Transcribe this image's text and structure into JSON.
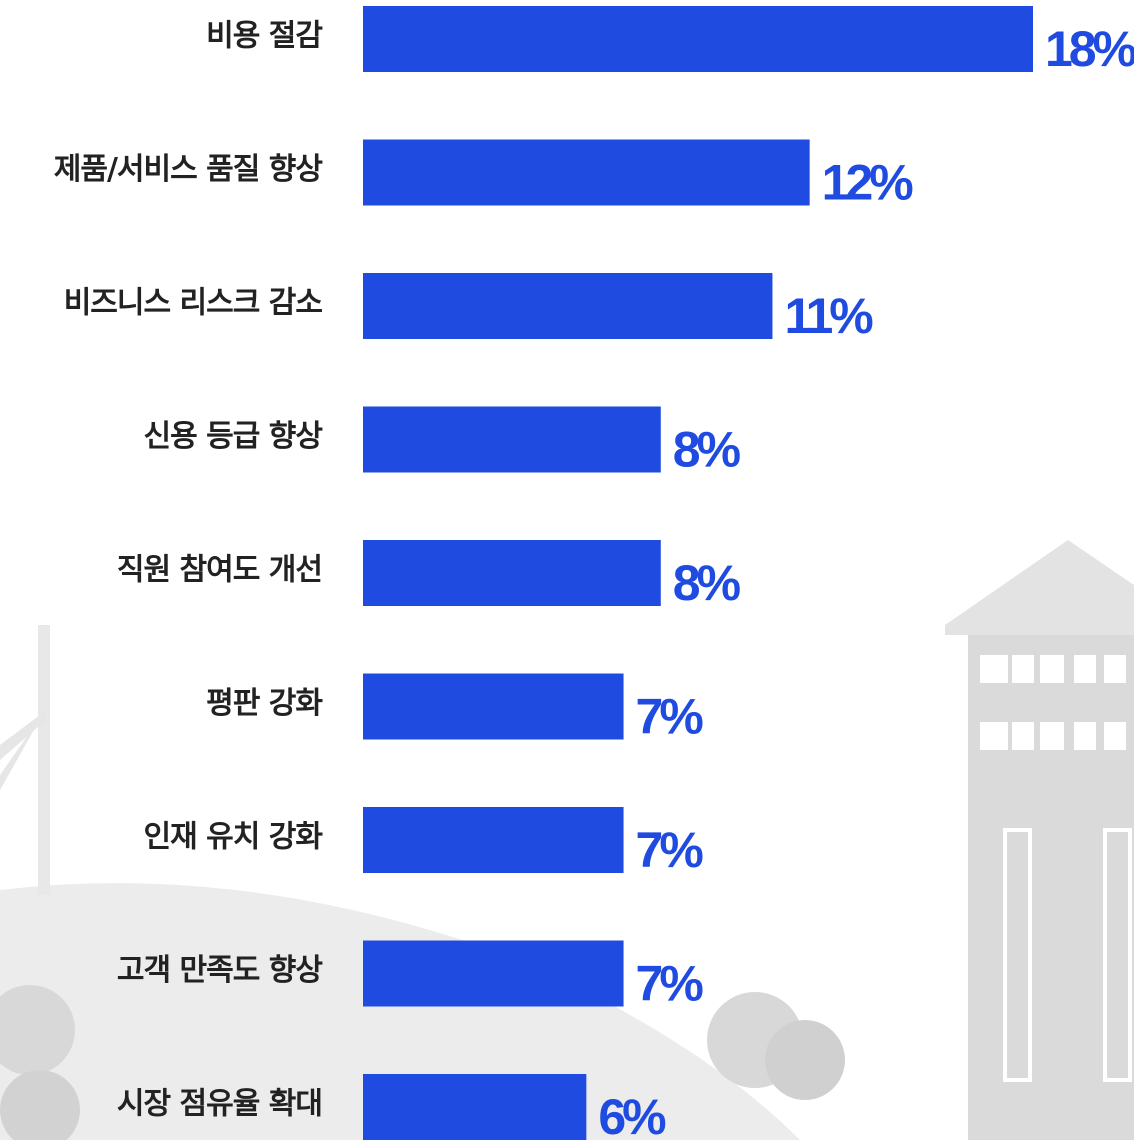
{
  "chart_data": {
    "type": "bar",
    "orientation": "horizontal",
    "color": "#1f4be0",
    "categories": [
      "비용 절감",
      "제품/서비스 품질 향상",
      "비즈니스 리스크 감소",
      "신용 등급 향상",
      "직원 참여도 개선",
      "평판 강화",
      "인재 유치 강화",
      "고객 만족도 향상",
      "시장 점유율 확대"
    ],
    "values": [
      18,
      12,
      11,
      8,
      8,
      7,
      7,
      7,
      6
    ],
    "value_labels": [
      "18%",
      "12%",
      "11%",
      "8%",
      "8%",
      "7%",
      "7%",
      "7%",
      "6%"
    ]
  }
}
